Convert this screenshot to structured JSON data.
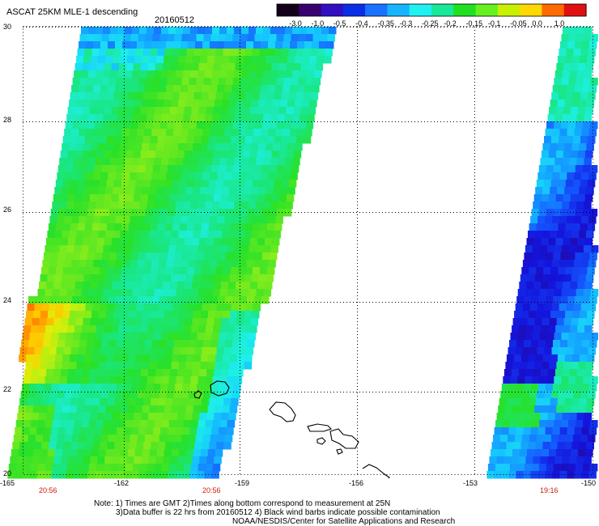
{
  "header": {
    "title": "ASCAT 25KM MLE-1 descending",
    "date": "20160512"
  },
  "colorbar": {
    "labels": [
      "-3.0",
      "-1.0",
      "-0.5",
      "-0.4",
      "-0.35",
      "-0.3",
      "-0.25",
      "-0.2",
      "-0.15",
      "-0.1",
      "-0.05",
      "0.0",
      "1.0"
    ],
    "colors": [
      "#140018",
      "#3a0070",
      "#3010c0",
      "#0a2ee6",
      "#1a72ff",
      "#18b4ff",
      "#20f0f0",
      "#18e898",
      "#20e020",
      "#66f020",
      "#c8f000",
      "#ffd800",
      "#ff6a00",
      "#e01010"
    ]
  },
  "map": {
    "lon_range": [
      -165,
      -150
    ],
    "lat_range": [
      20,
      30
    ],
    "lat_ticks": [
      "30",
      "28",
      "26",
      "24",
      "22",
      "20"
    ],
    "lon_ticks": [
      "-165",
      "-162",
      "-159",
      "-156",
      "-153",
      "-150"
    ],
    "swath_times": [
      "20:56",
      "20:56",
      "19:16"
    ]
  },
  "notes": {
    "line1": "Note: 1) Times are GMT 2)Times along bottom correspond to measurement at 25N",
    "line2": "3)Data buffer is 22 hrs from 20160512 4) Black wind barbs indicate possible contamination",
    "line3": "NOAA/NESDIS/Center for Satellite Applications and Research"
  }
}
